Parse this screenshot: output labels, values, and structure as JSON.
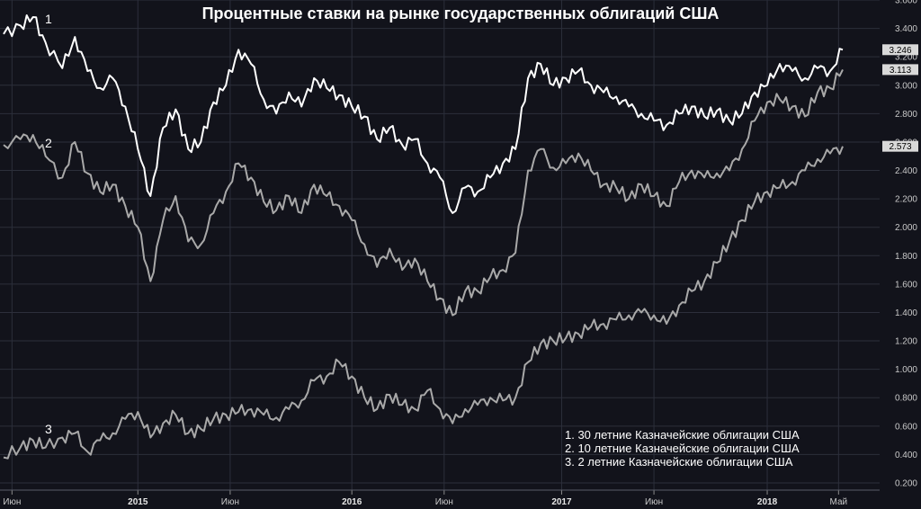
{
  "chart_data": {
    "type": "line",
    "title": "Процентные ставки на рынке государственных облигаций США",
    "xlabel": "",
    "ylabel": "",
    "ylim": [
      0.2,
      3.6
    ],
    "yticks": [
      "3.600",
      "3.400",
      "3.200",
      "3.000",
      "2.800",
      "2.600",
      "2.400",
      "2.200",
      "2.000",
      "1.800",
      "1.600",
      "1.400",
      "1.200",
      "1.000",
      "0.800",
      "0.600",
      "0.400",
      "0.200"
    ],
    "xticks": [
      {
        "label": "Июн",
        "t": 0.01,
        "bold": false
      },
      {
        "label": "2015",
        "t": 0.16,
        "bold": true
      },
      {
        "label": "Июн",
        "t": 0.27,
        "bold": false
      },
      {
        "label": "2016",
        "t": 0.415,
        "bold": true
      },
      {
        "label": "Июн",
        "t": 0.525,
        "bold": false
      },
      {
        "label": "2017",
        "t": 0.665,
        "bold": true
      },
      {
        "label": "Июн",
        "t": 0.775,
        "bold": false
      },
      {
        "label": "2018",
        "t": 0.91,
        "bold": true
      },
      {
        "label": "Май",
        "t": 0.995,
        "bold": false
      }
    ],
    "grid": true,
    "legend_position": "bottom-right",
    "legend": [
      "1. 30 летние Казначейские облигации США",
      "2. 10 летние Казначейские облигации США",
      "3. 2 летние Казначейские облигации США"
    ],
    "series": [
      {
        "name": "1",
        "color": "#ffffff",
        "last_value_label": "3.246",
        "points": [
          [
            0.0,
            3.36
          ],
          [
            0.02,
            3.42
          ],
          [
            0.035,
            3.48
          ],
          [
            0.05,
            3.3
          ],
          [
            0.07,
            3.12
          ],
          [
            0.085,
            3.34
          ],
          [
            0.1,
            3.1
          ],
          [
            0.115,
            2.98
          ],
          [
            0.13,
            3.05
          ],
          [
            0.145,
            2.85
          ],
          [
            0.16,
            2.55
          ],
          [
            0.175,
            2.22
          ],
          [
            0.19,
            2.7
          ],
          [
            0.205,
            2.83
          ],
          [
            0.22,
            2.55
          ],
          [
            0.235,
            2.6
          ],
          [
            0.25,
            2.88
          ],
          [
            0.265,
            3.0
          ],
          [
            0.28,
            3.25
          ],
          [
            0.295,
            3.15
          ],
          [
            0.31,
            2.9
          ],
          [
            0.325,
            2.8
          ],
          [
            0.34,
            2.95
          ],
          [
            0.355,
            2.85
          ],
          [
            0.37,
            3.05
          ],
          [
            0.385,
            2.98
          ],
          [
            0.4,
            2.93
          ],
          [
            0.415,
            2.85
          ],
          [
            0.43,
            2.78
          ],
          [
            0.445,
            2.62
          ],
          [
            0.46,
            2.7
          ],
          [
            0.475,
            2.58
          ],
          [
            0.49,
            2.62
          ],
          [
            0.505,
            2.45
          ],
          [
            0.52,
            2.35
          ],
          [
            0.535,
            2.1
          ],
          [
            0.55,
            2.28
          ],
          [
            0.565,
            2.25
          ],
          [
            0.58,
            2.35
          ],
          [
            0.595,
            2.45
          ],
          [
            0.61,
            2.55
          ],
          [
            0.625,
            3.05
          ],
          [
            0.64,
            3.15
          ],
          [
            0.655,
            3.0
          ],
          [
            0.67,
            3.05
          ],
          [
            0.685,
            3.1
          ],
          [
            0.7,
            3.0
          ],
          [
            0.715,
            2.95
          ],
          [
            0.73,
            2.92
          ],
          [
            0.745,
            2.85
          ],
          [
            0.76,
            2.8
          ],
          [
            0.775,
            2.75
          ],
          [
            0.79,
            2.72
          ],
          [
            0.805,
            2.8
          ],
          [
            0.82,
            2.85
          ],
          [
            0.835,
            2.78
          ],
          [
            0.85,
            2.82
          ],
          [
            0.865,
            2.75
          ],
          [
            0.88,
            2.8
          ],
          [
            0.895,
            2.95
          ],
          [
            0.91,
            3.0
          ],
          [
            0.925,
            3.15
          ],
          [
            0.94,
            3.1
          ],
          [
            0.955,
            3.05
          ],
          [
            0.97,
            3.12
          ],
          [
            0.985,
            3.1
          ],
          [
            1.0,
            3.25
          ]
        ]
      },
      {
        "name": "2",
        "color": "#a9a9a9",
        "last_value_label": "3.113",
        "points": [
          [
            0.0,
            2.58
          ],
          [
            0.02,
            2.62
          ],
          [
            0.035,
            2.65
          ],
          [
            0.05,
            2.5
          ],
          [
            0.07,
            2.35
          ],
          [
            0.085,
            2.6
          ],
          [
            0.1,
            2.38
          ],
          [
            0.115,
            2.25
          ],
          [
            0.13,
            2.3
          ],
          [
            0.145,
            2.15
          ],
          [
            0.16,
            2.0
          ],
          [
            0.175,
            1.62
          ],
          [
            0.19,
            2.05
          ],
          [
            0.205,
            2.22
          ],
          [
            0.22,
            1.9
          ],
          [
            0.235,
            1.88
          ],
          [
            0.25,
            2.1
          ],
          [
            0.265,
            2.25
          ],
          [
            0.28,
            2.45
          ],
          [
            0.295,
            2.35
          ],
          [
            0.31,
            2.18
          ],
          [
            0.325,
            2.12
          ],
          [
            0.34,
            2.22
          ],
          [
            0.355,
            2.1
          ],
          [
            0.37,
            2.3
          ],
          [
            0.385,
            2.22
          ],
          [
            0.4,
            2.15
          ],
          [
            0.415,
            2.05
          ],
          [
            0.43,
            1.88
          ],
          [
            0.445,
            1.72
          ],
          [
            0.46,
            1.85
          ],
          [
            0.475,
            1.7
          ],
          [
            0.49,
            1.78
          ],
          [
            0.505,
            1.62
          ],
          [
            0.52,
            1.5
          ],
          [
            0.535,
            1.38
          ],
          [
            0.55,
            1.55
          ],
          [
            0.565,
            1.55
          ],
          [
            0.58,
            1.65
          ],
          [
            0.595,
            1.7
          ],
          [
            0.61,
            1.82
          ],
          [
            0.625,
            2.4
          ],
          [
            0.64,
            2.55
          ],
          [
            0.655,
            2.42
          ],
          [
            0.67,
            2.45
          ],
          [
            0.685,
            2.52
          ],
          [
            0.7,
            2.4
          ],
          [
            0.715,
            2.3
          ],
          [
            0.73,
            2.28
          ],
          [
            0.745,
            2.2
          ],
          [
            0.76,
            2.3
          ],
          [
            0.775,
            2.22
          ],
          [
            0.79,
            2.15
          ],
          [
            0.805,
            2.32
          ],
          [
            0.82,
            2.4
          ],
          [
            0.835,
            2.35
          ],
          [
            0.85,
            2.38
          ],
          [
            0.865,
            2.4
          ],
          [
            0.88,
            2.55
          ],
          [
            0.895,
            2.75
          ],
          [
            0.91,
            2.88
          ],
          [
            0.925,
            2.9
          ],
          [
            0.94,
            2.85
          ],
          [
            0.955,
            2.78
          ],
          [
            0.97,
            2.95
          ],
          [
            0.985,
            2.98
          ],
          [
            1.0,
            3.11
          ]
        ]
      },
      {
        "name": "3",
        "color": "#a9a9a9",
        "last_value_label": "2.573",
        "points": [
          [
            0.0,
            0.38
          ],
          [
            0.02,
            0.45
          ],
          [
            0.035,
            0.5
          ],
          [
            0.05,
            0.45
          ],
          [
            0.07,
            0.52
          ],
          [
            0.085,
            0.55
          ],
          [
            0.1,
            0.42
          ],
          [
            0.115,
            0.5
          ],
          [
            0.13,
            0.55
          ],
          [
            0.145,
            0.65
          ],
          [
            0.16,
            0.7
          ],
          [
            0.175,
            0.52
          ],
          [
            0.19,
            0.62
          ],
          [
            0.205,
            0.68
          ],
          [
            0.22,
            0.55
          ],
          [
            0.235,
            0.58
          ],
          [
            0.25,
            0.65
          ],
          [
            0.265,
            0.68
          ],
          [
            0.28,
            0.7
          ],
          [
            0.295,
            0.72
          ],
          [
            0.31,
            0.68
          ],
          [
            0.325,
            0.66
          ],
          [
            0.34,
            0.72
          ],
          [
            0.355,
            0.78
          ],
          [
            0.37,
            0.92
          ],
          [
            0.385,
            0.95
          ],
          [
            0.4,
            1.05
          ],
          [
            0.415,
            0.95
          ],
          [
            0.43,
            0.8
          ],
          [
            0.445,
            0.72
          ],
          [
            0.46,
            0.82
          ],
          [
            0.475,
            0.75
          ],
          [
            0.49,
            0.72
          ],
          [
            0.505,
            0.85
          ],
          [
            0.52,
            0.72
          ],
          [
            0.535,
            0.62
          ],
          [
            0.55,
            0.72
          ],
          [
            0.565,
            0.75
          ],
          [
            0.58,
            0.8
          ],
          [
            0.595,
            0.78
          ],
          [
            0.61,
            0.8
          ],
          [
            0.625,
            1.05
          ],
          [
            0.64,
            1.18
          ],
          [
            0.655,
            1.2
          ],
          [
            0.67,
            1.22
          ],
          [
            0.685,
            1.25
          ],
          [
            0.7,
            1.3
          ],
          [
            0.715,
            1.32
          ],
          [
            0.73,
            1.35
          ],
          [
            0.745,
            1.38
          ],
          [
            0.76,
            1.4
          ],
          [
            0.775,
            1.38
          ],
          [
            0.79,
            1.32
          ],
          [
            0.805,
            1.45
          ],
          [
            0.82,
            1.55
          ],
          [
            0.835,
            1.62
          ],
          [
            0.85,
            1.75
          ],
          [
            0.865,
            1.9
          ],
          [
            0.88,
            2.05
          ],
          [
            0.895,
            2.18
          ],
          [
            0.91,
            2.25
          ],
          [
            0.925,
            2.28
          ],
          [
            0.94,
            2.32
          ],
          [
            0.955,
            2.4
          ],
          [
            0.97,
            2.48
          ],
          [
            0.985,
            2.52
          ],
          [
            1.0,
            2.57
          ]
        ]
      }
    ],
    "series_markers": [
      "1",
      "2",
      "3"
    ]
  },
  "colors": {
    "background": "#12131b",
    "grid": "#2c2f3b",
    "tag_fill": "#d9d9d9",
    "tag_text": "#000000"
  }
}
